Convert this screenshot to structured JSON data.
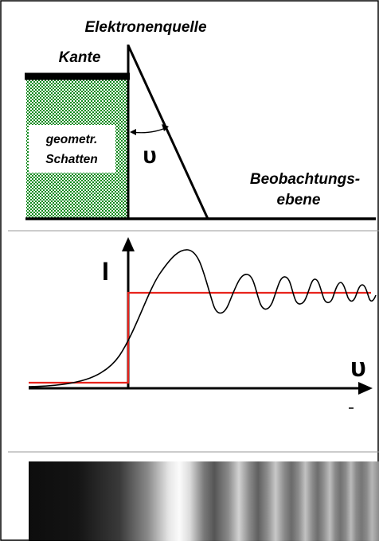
{
  "labels": {
    "source": "Elektronenquelle",
    "edge": "Kante",
    "shadow_line1": "geometr.",
    "shadow_line2": "Schatten",
    "plane_line1": "Beobachtungs-",
    "plane_line2": "ebene",
    "angle_symbol": "υ",
    "intensity_axis": "I",
    "angle_axis": "υ"
  },
  "colors": {
    "frame": "#000000",
    "hatch_green": "#0c8a1c",
    "geometric_curve": "#e8231c",
    "diffraction_curve": "#000000"
  }
}
